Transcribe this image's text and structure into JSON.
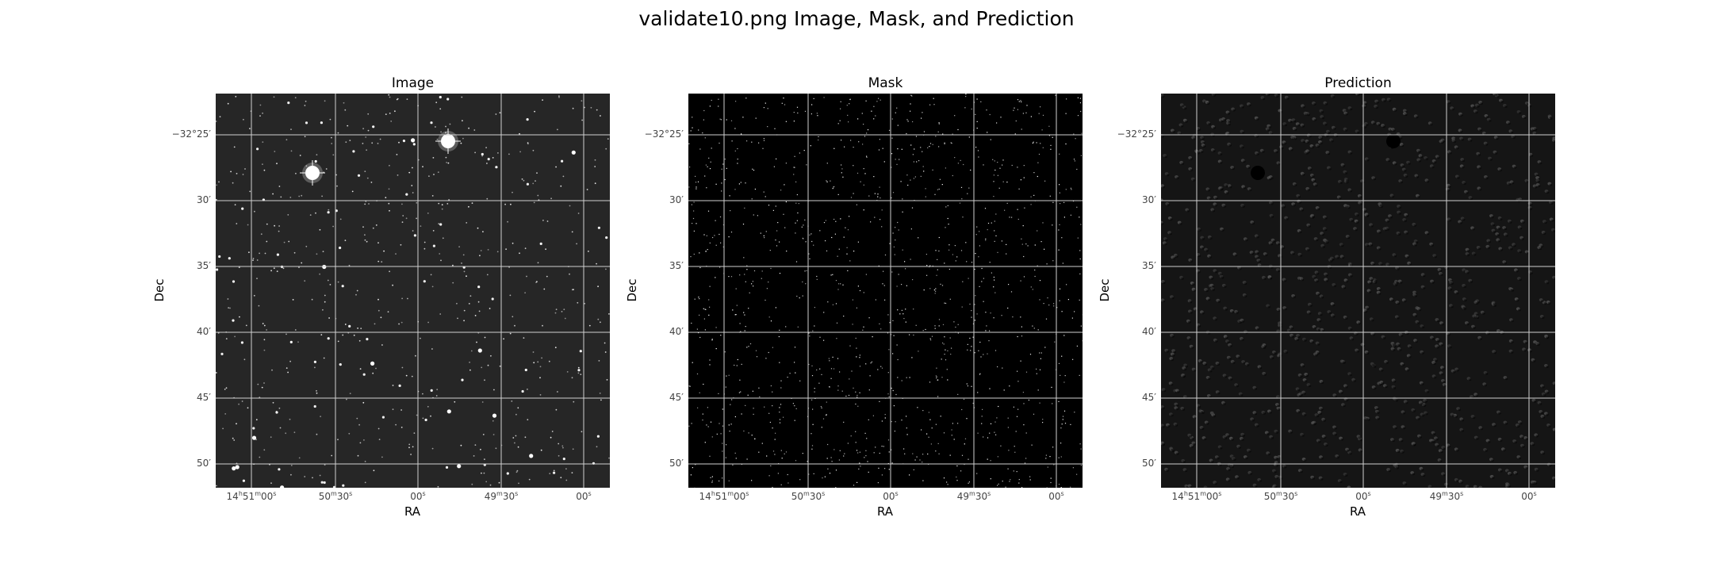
{
  "figure_title": "validate10.png Image, Mask, and Prediction",
  "panels": [
    {
      "title": "Image",
      "xlabel": "RA",
      "ylabel": "Dec",
      "style": "image"
    },
    {
      "title": "Mask",
      "xlabel": "RA",
      "ylabel": "Dec",
      "style": "mask"
    },
    {
      "title": "Prediction",
      "xlabel": "RA",
      "ylabel": "Dec",
      "style": "prediction"
    }
  ],
  "dec_ticks": [
    "−32°25′",
    "30′",
    "35′",
    "40′",
    "45′",
    "50′"
  ],
  "ra_ticks": [
    {
      "pre": "14",
      "h": "h",
      "mid": "51",
      "m": "m",
      "post": "00",
      "s": "s"
    },
    {
      "pre": "",
      "h": "",
      "mid": "50",
      "m": "m",
      "post": "30",
      "s": "s"
    },
    {
      "pre": "",
      "h": "",
      "mid": "",
      "m": "",
      "post": "00",
      "s": "s"
    },
    {
      "pre": "",
      "h": "",
      "mid": "49",
      "m": "m",
      "post": "30",
      "s": "s"
    },
    {
      "pre": "",
      "h": "",
      "mid": "",
      "m": "",
      "post": "00",
      "s": "s"
    }
  ],
  "colors": {
    "image_background": "#262626",
    "mask_background": "#000000",
    "prediction_background": "#151515",
    "grid": "#d0d0d0"
  }
}
